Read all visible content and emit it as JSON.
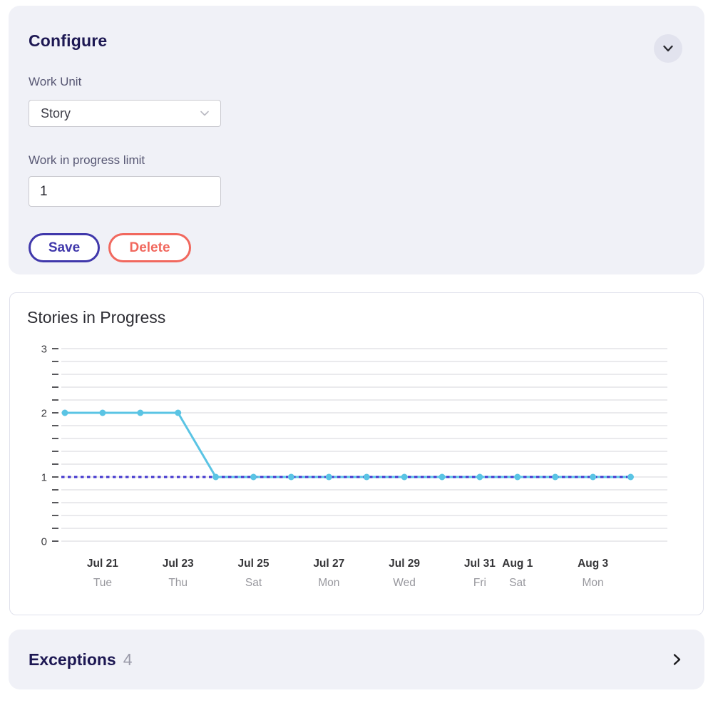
{
  "configure": {
    "title": "Configure",
    "work_unit": {
      "label": "Work Unit",
      "value": "Story"
    },
    "wip_limit": {
      "label": "Work in progress limit",
      "value": "1"
    },
    "save_label": "Save",
    "delete_label": "Delete",
    "accent_color": "#4038ab",
    "danger_color": "#f1685e"
  },
  "chart_panel": {
    "title": "Stories in Progress"
  },
  "chart_data": {
    "type": "line",
    "title": "Stories in Progress",
    "x": [
      "Jul 20",
      "Jul 21",
      "Jul 22",
      "Jul 23",
      "Jul 24",
      "Jul 25",
      "Jul 26",
      "Jul 27",
      "Jul 28",
      "Jul 29",
      "Jul 30",
      "Jul 31",
      "Aug 1",
      "Aug 2",
      "Aug 3",
      "Aug 4"
    ],
    "values": [
      2,
      2,
      2,
      2,
      1,
      1,
      1,
      1,
      1,
      1,
      1,
      1,
      1,
      1,
      1,
      1
    ],
    "x_ticks": [
      {
        "index": 1,
        "date": "Jul 21",
        "day": "Tue"
      },
      {
        "index": 3,
        "date": "Jul 23",
        "day": "Thu"
      },
      {
        "index": 5,
        "date": "Jul 25",
        "day": "Sat"
      },
      {
        "index": 7,
        "date": "Jul 27",
        "day": "Mon"
      },
      {
        "index": 9,
        "date": "Jul 29",
        "day": "Wed"
      },
      {
        "index": 11,
        "date": "Jul 31",
        "day": "Fri"
      },
      {
        "index": 12,
        "date": "Aug 1",
        "day": "Sat"
      },
      {
        "index": 14,
        "date": "Aug 3",
        "day": "Mon"
      }
    ],
    "ylim": [
      0,
      3
    ],
    "y_major_ticks": [
      0,
      1,
      2,
      3
    ],
    "y_minor_step": 0.2,
    "grid": true,
    "legend": "none",
    "limit_line": {
      "value": 1,
      "color": "#4134ce",
      "style": "dashed"
    },
    "series_color": "#5ac4e4",
    "grid_color": "#e3e3e7",
    "tick_color": "#58585c",
    "axis_label_color": "#3c3c40",
    "date_color": "#353538",
    "day_color": "#98989e"
  },
  "exceptions": {
    "title": "Exceptions",
    "count": "4"
  }
}
